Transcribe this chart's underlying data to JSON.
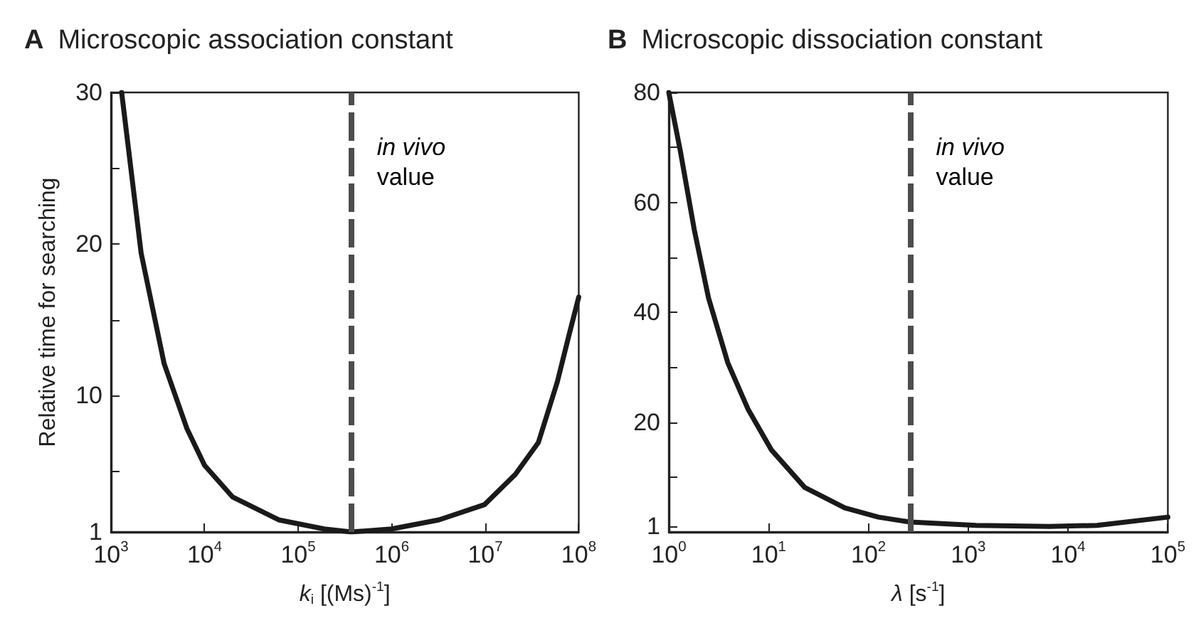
{
  "chart_data": [
    {
      "type": "line",
      "title": "A Microscopic association constant",
      "xlabel": "k$_{i}$ [(Ms)$^{-1}$]",
      "ylabel": "Relative time for searching",
      "log": "x",
      "marker": "none",
      "line_style": "solid",
      "x": [
        1300,
        2100,
        3700,
        6500,
        10000,
        20000,
        62000,
        190000,
        370000,
        1000000,
        3200000,
        9800000,
        21000000,
        37000000,
        59000000,
        78000000,
        100000000
      ],
      "series": [
        {
          "color": "#1a1a1a",
          "values": [
            30,
            19.4,
            12.1,
            7.8,
            5.4,
            3.3,
            1.8,
            1.2,
            1.0,
            1.2,
            1.8,
            2.8,
            4.8,
            6.9,
            10.9,
            13.9,
            16.5
          ]
        }
      ],
      "xlim": [
        1000,
        100000000
      ],
      "xticks": [
        {
          "value": 1000,
          "label": "10$^{3}$"
        },
        {
          "value": 10000,
          "label": "10$^{4}$"
        },
        {
          "value": 100000,
          "label": "10$^{5}$"
        },
        {
          "value": 1000000,
          "label": "10$^{6}$"
        },
        {
          "value": 10000000,
          "label": "10$^{7}$"
        },
        {
          "value": 100000000,
          "label": "10$^{8}$"
        }
      ],
      "ylim": [
        1,
        30
      ],
      "yticks": [
        1,
        {
          "value": 5,
          "label": null
        },
        10,
        {
          "value": 15,
          "label": null
        },
        20,
        {
          "value": 25,
          "label": null
        },
        30
      ],
      "ref_lines": [
        {
          "axis": "x",
          "value": 370000,
          "label": "in vivo value",
          "color": "#4d4d4d",
          "line_style": "dashed"
        }
      ]
    },
    {
      "type": "line",
      "title": "B Microscopic dissociation constant",
      "xlabel": "λ [s$^{-1}$]",
      "log": "x",
      "marker": "none",
      "line_style": "solid",
      "x": [
        1,
        1.3,
        1.8,
        2.5,
        3.9,
        6.2,
        10.7,
        23,
        58,
        126,
        263,
        1200,
        6500,
        19500,
        100000
      ],
      "series": [
        {
          "color": "#1a1a1a",
          "values": [
            80,
            69.5,
            55,
            42.6,
            30.8,
            22.4,
            14.9,
            8.1,
            4.4,
            2.7,
            1.8,
            1.2,
            1.0,
            1.2,
            2.7
          ]
        }
      ],
      "xlim": [
        1,
        100000
      ],
      "xticks": [
        {
          "value": 1,
          "label": "10$^{0}$"
        },
        {
          "value": 10,
          "label": "10$^{1}$"
        },
        {
          "value": 100,
          "label": "10$^{2}$"
        },
        {
          "value": 1000,
          "label": "10$^{3}$"
        },
        {
          "value": 10000,
          "label": "10$^{4}$"
        },
        {
          "value": 100000,
          "label": "10$^{5}$"
        }
      ],
      "ylim": [
        0,
        80
      ],
      "yticks": [
        1,
        {
          "value": 10,
          "label": null
        },
        20,
        {
          "value": 30,
          "label": null
        },
        40,
        {
          "value": 50,
          "label": null
        },
        60,
        {
          "value": 70,
          "label": null
        },
        80
      ],
      "ref_lines": [
        {
          "axis": "x",
          "value": 263,
          "label": "in vivo value",
          "color": "#4d4d4d",
          "line_style": "dashed"
        }
      ]
    }
  ]
}
